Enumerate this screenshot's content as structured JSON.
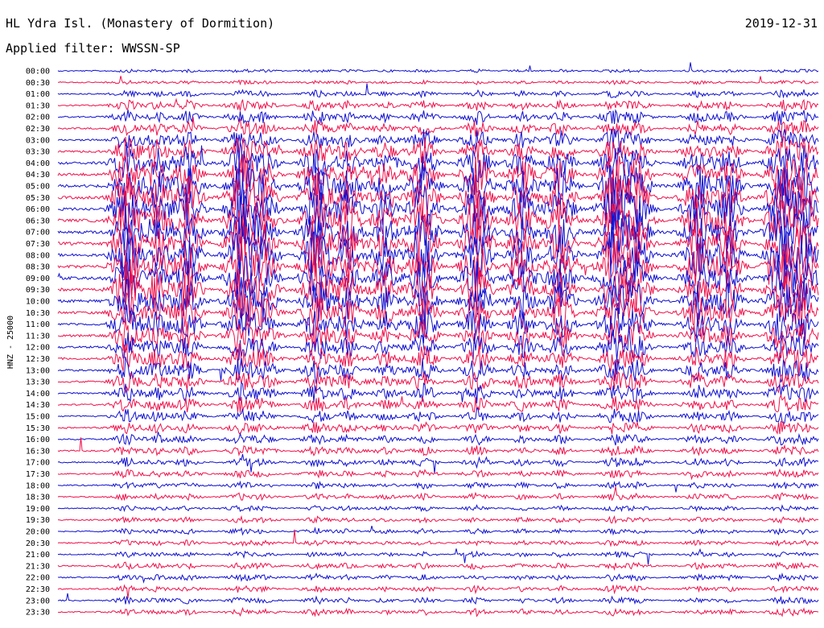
{
  "header": {
    "station": "HL Ydra Isl. (Monastery of Dormition)",
    "filter": "Applied filter: WWSSN-SP",
    "date": "2019-12-31"
  },
  "chart_data": {
    "type": "line",
    "ylabel": "HNZ - 25000",
    "xlabel": "",
    "row_labels": [
      "00:00",
      "00:30",
      "01:00",
      "01:30",
      "02:00",
      "02:30",
      "03:00",
      "03:30",
      "04:00",
      "04:30",
      "05:00",
      "05:30",
      "06:00",
      "06:30",
      "07:00",
      "07:30",
      "08:00",
      "08:30",
      "09:00",
      "09:30",
      "10:00",
      "10:30",
      "11:00",
      "11:30",
      "12:00",
      "12:30",
      "13:00",
      "13:30",
      "14:00",
      "14:30",
      "15:00",
      "15:30",
      "16:00",
      "16:30",
      "17:00",
      "17:30",
      "18:00",
      "18:30",
      "19:00",
      "19:30",
      "20:00",
      "20:30",
      "21:00",
      "21:30",
      "22:00",
      "22:30",
      "23:00",
      "23:30"
    ],
    "series_colors": [
      "#1010d0",
      "#f0104a"
    ],
    "row_activity": [
      0.05,
      0.06,
      0.12,
      0.2,
      0.25,
      0.3,
      0.4,
      0.55,
      0.7,
      0.8,
      0.9,
      0.95,
      1.0,
      1.0,
      1.0,
      1.0,
      1.0,
      1.0,
      0.95,
      0.9,
      0.85,
      0.8,
      0.7,
      0.6,
      0.55,
      0.5,
      0.45,
      0.4,
      0.35,
      0.3,
      0.25,
      0.22,
      0.2,
      0.18,
      0.16,
      0.14,
      0.12,
      0.12,
      0.1,
      0.1,
      0.1,
      0.1,
      0.1,
      0.12,
      0.12,
      0.12,
      0.12,
      0.12
    ],
    "bursts": [
      {
        "x": 0.09,
        "strength": 1.0
      },
      {
        "x": 0.13,
        "strength": 0.7
      },
      {
        "x": 0.17,
        "strength": 0.8
      },
      {
        "x": 0.24,
        "strength": 1.0
      },
      {
        "x": 0.27,
        "strength": 0.7
      },
      {
        "x": 0.34,
        "strength": 1.0
      },
      {
        "x": 0.38,
        "strength": 0.7
      },
      {
        "x": 0.43,
        "strength": 0.6
      },
      {
        "x": 0.48,
        "strength": 0.9
      },
      {
        "x": 0.55,
        "strength": 1.0
      },
      {
        "x": 0.61,
        "strength": 0.7
      },
      {
        "x": 0.66,
        "strength": 0.8
      },
      {
        "x": 0.73,
        "strength": 1.0
      },
      {
        "x": 0.76,
        "strength": 0.8
      },
      {
        "x": 0.84,
        "strength": 0.8
      },
      {
        "x": 0.88,
        "strength": 0.7
      },
      {
        "x": 0.95,
        "strength": 1.0
      },
      {
        "x": 0.98,
        "strength": 0.8
      }
    ]
  }
}
